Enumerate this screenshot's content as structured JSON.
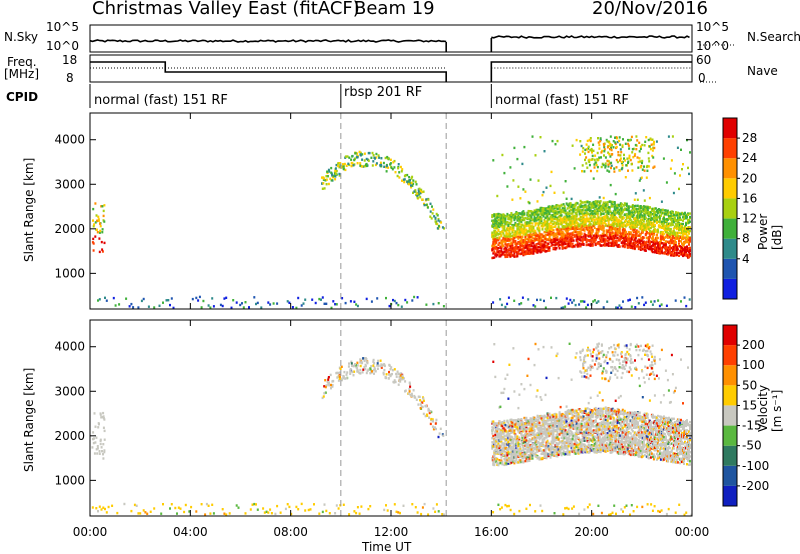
{
  "header": {
    "title": "Christmas Valley East (fitACF)",
    "beam": "Beam 19",
    "date": "20/Nov/2016"
  },
  "top_panels": {
    "nsky_label": "N.Sky",
    "nsky_ticks": [
      "10^5",
      "10^0"
    ],
    "nsearch_label": "N.Search",
    "nsearch_ticks": [
      "10^5",
      "10^0"
    ],
    "freq_label_line1": "Freq.",
    "freq_label_line2": "[MHz]",
    "freq_ticks": [
      "18",
      "8"
    ],
    "nave_label": "Nave",
    "nave_ticks": [
      "60",
      "0"
    ],
    "cpid_label": "CPID",
    "cpid_segments": [
      "normal (fast) 151 RF",
      "rbsp 201 RF",
      "normal (fast) 151 RF"
    ]
  },
  "chart_data": [
    {
      "type": "heatmap",
      "name": "power",
      "ylabel": "Slant Range [km]",
      "yticks": [
        "4000",
        "3000",
        "2000",
        "1000"
      ],
      "ylim": [
        200,
        4600
      ],
      "xlim": [
        0,
        24
      ],
      "colorbar_label": "Power [dB]",
      "colorbar_ticks": [
        "28",
        "24",
        "20",
        "16",
        "12",
        "8",
        "4"
      ],
      "colors": [
        "#1020e0",
        "#1f55b0",
        "#2e8a8a",
        "#3fb03a",
        "#a8d010",
        "#ffcc00",
        "#ff9000",
        "#ff4000",
        "#e00000"
      ],
      "data_gap_hours": [
        14.2,
        16.0
      ]
    },
    {
      "type": "heatmap",
      "name": "velocity",
      "ylabel": "Slant Range [km]",
      "yticks": [
        "4000",
        "3000",
        "2000",
        "1000"
      ],
      "ylim": [
        200,
        4600
      ],
      "xlim": [
        0,
        24
      ],
      "xlabel": "Time UT",
      "xticks": [
        "00:00",
        "04:00",
        "08:00",
        "12:00",
        "16:00",
        "20:00",
        "00:00"
      ],
      "colorbar_label": "Velocity [m s⁻¹]",
      "colorbar_ticks": [
        "200",
        "100",
        "50",
        "15",
        "-15",
        "-50",
        "-100",
        "-200"
      ],
      "colors": [
        "#1020c0",
        "#1f55a0",
        "#2f7a60",
        "#5ab840",
        "#c8c8c0",
        "#ffcc00",
        "#ff9000",
        "#ff4000",
        "#e00000"
      ],
      "data_gap_hours": [
        14.2,
        16.0
      ]
    }
  ]
}
